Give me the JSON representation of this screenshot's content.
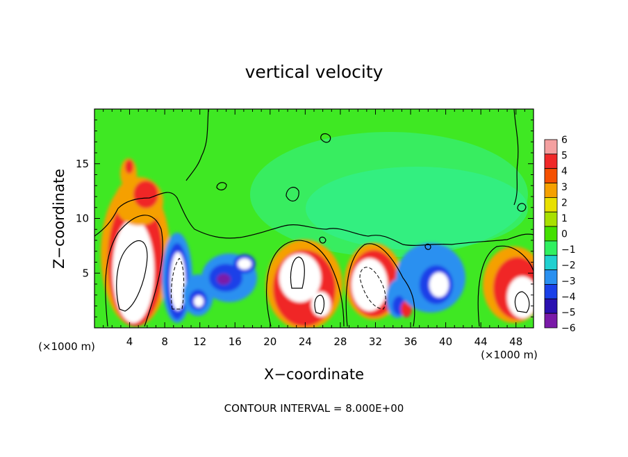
{
  "chart_data": {
    "type": "heatmap",
    "title": "vertical velocity",
    "xlabel": "X−coordinate",
    "ylabel": "Z−coordinate",
    "x_unit_label": "(×1000 m)",
    "z_unit_label": "(×1000 m)",
    "x_ticks": [
      "4",
      "8",
      "12",
      "16",
      "20",
      "24",
      "28",
      "32",
      "36",
      "40",
      "44",
      "48"
    ],
    "z_ticks": [
      "5",
      "10",
      "15"
    ],
    "xlim": [
      0,
      50
    ],
    "zlim": [
      0,
      20
    ],
    "footer": "CONTOUR INTERVAL = 8.000E+00",
    "colorbar": {
      "levels": [
        "6",
        "5",
        "4",
        "3",
        "2",
        "1",
        "0",
        "−1",
        "−2",
        "−3",
        "−4",
        "−5",
        "−6"
      ],
      "level_values": [
        6,
        5,
        4,
        3,
        2,
        1,
        0,
        -1,
        -2,
        -3,
        -4,
        -5,
        -6
      ],
      "colors_top_to_bottom": [
        "#f4a0a0",
        "#f02828",
        "#f55000",
        "#f5a000",
        "#e8e000",
        "#a8e000",
        "#44e000",
        "#30f060",
        "#20d0d0",
        "#2a90f0",
        "#1a40e8",
        "#2a10b0",
        "#7a1aa8"
      ],
      "background_color": "#3fe823",
      "saturation_color": "#ffffff"
    },
    "cells": [
      {
        "x": 4.5,
        "z": 6,
        "w": 0.9,
        "sign": 1
      },
      {
        "x": 5,
        "z": 11,
        "w": 0.75,
        "sign": 1
      },
      {
        "x": 4.5,
        "z": 14,
        "w": 0.5,
        "sign": 1
      },
      {
        "x": 9.5,
        "z": 4.5,
        "w": -0.9,
        "sign": -1
      },
      {
        "x": 12,
        "z": 3,
        "w": -0.8,
        "sign": -1
      },
      {
        "x": 15,
        "z": 4.5,
        "w": -0.85,
        "sign": -1
      },
      {
        "x": 17.5,
        "z": 5.5,
        "w": -0.7,
        "sign": -1
      },
      {
        "x": 23,
        "z": 4.5,
        "w": 0.9,
        "sign": 1
      },
      {
        "x": 26,
        "z": 2.5,
        "w": 0.7,
        "sign": 1
      },
      {
        "x": 31.5,
        "z": 4.5,
        "w": 0.9,
        "sign": 1
      },
      {
        "x": 34.5,
        "z": 2.5,
        "w": -0.7,
        "sign": -1
      },
      {
        "x": 38.5,
        "z": 4.5,
        "w": -0.9,
        "sign": -1
      },
      {
        "x": 47.5,
        "z": 3.5,
        "w": 0.85,
        "sign": 1
      }
    ]
  }
}
